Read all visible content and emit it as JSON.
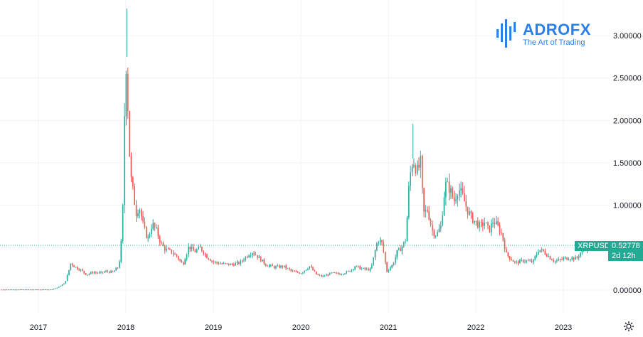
{
  "logo": {
    "brand": "ADROFX",
    "brand_main": "ADRO",
    "brand_accent": "FX",
    "tagline": "The Art of Trading"
  },
  "symbol": {
    "name": "XRPUSD",
    "last_price": "0.52778",
    "countdown": "2d 12h"
  },
  "colors": {
    "up": "#26a69a",
    "down": "#ef5350",
    "last_price_bg": "#22ab94",
    "grid": "#f0f3fa",
    "brand": "#2a7fe8"
  },
  "chart_data": {
    "type": "candlestick",
    "title": "",
    "ylim": [
      -0.25,
      3.4
    ],
    "y_ticks": [
      {
        "v": 0.0,
        "label": "0.00000"
      },
      {
        "v": 0.5,
        "label": "0.50000"
      },
      {
        "v": 1.0,
        "label": "1.00000"
      },
      {
        "v": 1.5,
        "label": "1.50000"
      },
      {
        "v": 2.0,
        "label": "2.00000"
      },
      {
        "v": 2.5,
        "label": "2.50000"
      },
      {
        "v": 3.0,
        "label": "3.00000"
      }
    ],
    "x_ticks": [
      "2017",
      "2018",
      "2019",
      "2020",
      "2021",
      "2022",
      "2023"
    ],
    "x_range": [
      2016.56,
      2023.92
    ],
    "last_price": 0.52778,
    "series": [
      {
        "t": 2016.58,
        "v": 0.006
      },
      {
        "t": 2016.7,
        "v": 0.007
      },
      {
        "t": 2016.85,
        "v": 0.0065
      },
      {
        "t": 2017.0,
        "v": 0.0065
      },
      {
        "t": 2017.15,
        "v": 0.007
      },
      {
        "t": 2017.22,
        "v": 0.03
      },
      {
        "t": 2017.3,
        "v": 0.08
      },
      {
        "t": 2017.34,
        "v": 0.2
      },
      {
        "t": 2017.37,
        "v": 0.32
      },
      {
        "t": 2017.42,
        "v": 0.27
      },
      {
        "t": 2017.48,
        "v": 0.24
      },
      {
        "t": 2017.55,
        "v": 0.18
      },
      {
        "t": 2017.62,
        "v": 0.21
      },
      {
        "t": 2017.7,
        "v": 0.2
      },
      {
        "t": 2017.78,
        "v": 0.22
      },
      {
        "t": 2017.85,
        "v": 0.21
      },
      {
        "t": 2017.92,
        "v": 0.28
      },
      {
        "t": 2017.95,
        "v": 0.6
      },
      {
        "t": 2017.97,
        "v": 1.1
      },
      {
        "t": 2017.99,
        "v": 2.5
      },
      {
        "t": 2018.01,
        "v": 2.78
      },
      {
        "t": 2018.03,
        "v": 1.8
      },
      {
        "t": 2018.06,
        "v": 1.3
      },
      {
        "t": 2018.09,
        "v": 1.1
      },
      {
        "t": 2018.12,
        "v": 0.9
      },
      {
        "t": 2018.15,
        "v": 1.0
      },
      {
        "t": 2018.2,
        "v": 0.75
      },
      {
        "t": 2018.25,
        "v": 0.6
      },
      {
        "t": 2018.3,
        "v": 0.78
      },
      {
        "t": 2018.35,
        "v": 0.7
      },
      {
        "t": 2018.4,
        "v": 0.55
      },
      {
        "t": 2018.45,
        "v": 0.48
      },
      {
        "t": 2018.52,
        "v": 0.45
      },
      {
        "t": 2018.58,
        "v": 0.4
      },
      {
        "t": 2018.65,
        "v": 0.3
      },
      {
        "t": 2018.72,
        "v": 0.52
      },
      {
        "t": 2018.78,
        "v": 0.45
      },
      {
        "t": 2018.85,
        "v": 0.5
      },
      {
        "t": 2018.92,
        "v": 0.4
      },
      {
        "t": 2019.0,
        "v": 0.33
      },
      {
        "t": 2019.1,
        "v": 0.31
      },
      {
        "t": 2019.2,
        "v": 0.3
      },
      {
        "t": 2019.3,
        "v": 0.32
      },
      {
        "t": 2019.4,
        "v": 0.42
      },
      {
        "t": 2019.45,
        "v": 0.45
      },
      {
        "t": 2019.52,
        "v": 0.38
      },
      {
        "t": 2019.6,
        "v": 0.3
      },
      {
        "t": 2019.7,
        "v": 0.27
      },
      {
        "t": 2019.8,
        "v": 0.28
      },
      {
        "t": 2019.9,
        "v": 0.22
      },
      {
        "t": 2020.0,
        "v": 0.2
      },
      {
        "t": 2020.1,
        "v": 0.28
      },
      {
        "t": 2020.18,
        "v": 0.18
      },
      {
        "t": 2020.25,
        "v": 0.16
      },
      {
        "t": 2020.35,
        "v": 0.2
      },
      {
        "t": 2020.45,
        "v": 0.19
      },
      {
        "t": 2020.55,
        "v": 0.22
      },
      {
        "t": 2020.62,
        "v": 0.28
      },
      {
        "t": 2020.7,
        "v": 0.25
      },
      {
        "t": 2020.8,
        "v": 0.24
      },
      {
        "t": 2020.88,
        "v": 0.6
      },
      {
        "t": 2020.93,
        "v": 0.55
      },
      {
        "t": 2020.98,
        "v": 0.22
      },
      {
        "t": 2021.05,
        "v": 0.3
      },
      {
        "t": 2021.1,
        "v": 0.45
      },
      {
        "t": 2021.15,
        "v": 0.5
      },
      {
        "t": 2021.2,
        "v": 0.6
      },
      {
        "t": 2021.24,
        "v": 1.3
      },
      {
        "t": 2021.28,
        "v": 1.55
      },
      {
        "t": 2021.33,
        "v": 1.4
      },
      {
        "t": 2021.37,
        "v": 1.5
      },
      {
        "t": 2021.4,
        "v": 0.9
      },
      {
        "t": 2021.45,
        "v": 0.95
      },
      {
        "t": 2021.5,
        "v": 0.7
      },
      {
        "t": 2021.55,
        "v": 0.65
      },
      {
        "t": 2021.6,
        "v": 0.75
      },
      {
        "t": 2021.65,
        "v": 1.25
      },
      {
        "t": 2021.7,
        "v": 1.2
      },
      {
        "t": 2021.75,
        "v": 1.05
      },
      {
        "t": 2021.8,
        "v": 1.2
      },
      {
        "t": 2021.85,
        "v": 1.1
      },
      {
        "t": 2021.9,
        "v": 0.95
      },
      {
        "t": 2021.95,
        "v": 0.85
      },
      {
        "t": 2022.0,
        "v": 0.8
      },
      {
        "t": 2022.05,
        "v": 0.75
      },
      {
        "t": 2022.1,
        "v": 0.8
      },
      {
        "t": 2022.15,
        "v": 0.7
      },
      {
        "t": 2022.2,
        "v": 0.82
      },
      {
        "t": 2022.25,
        "v": 0.75
      },
      {
        "t": 2022.3,
        "v": 0.65
      },
      {
        "t": 2022.35,
        "v": 0.42
      },
      {
        "t": 2022.4,
        "v": 0.37
      },
      {
        "t": 2022.45,
        "v": 0.32
      },
      {
        "t": 2022.55,
        "v": 0.35
      },
      {
        "t": 2022.65,
        "v": 0.33
      },
      {
        "t": 2022.72,
        "v": 0.48
      },
      {
        "t": 2022.78,
        "v": 0.45
      },
      {
        "t": 2022.85,
        "v": 0.38
      },
      {
        "t": 2022.9,
        "v": 0.34
      },
      {
        "t": 2022.95,
        "v": 0.35
      },
      {
        "t": 2023.0,
        "v": 0.37
      },
      {
        "t": 2023.08,
        "v": 0.38
      },
      {
        "t": 2023.15,
        "v": 0.37
      },
      {
        "t": 2023.2,
        "v": 0.45
      },
      {
        "t": 2023.25,
        "v": 0.5
      },
      {
        "t": 2023.28,
        "v": 0.52778
      }
    ]
  }
}
